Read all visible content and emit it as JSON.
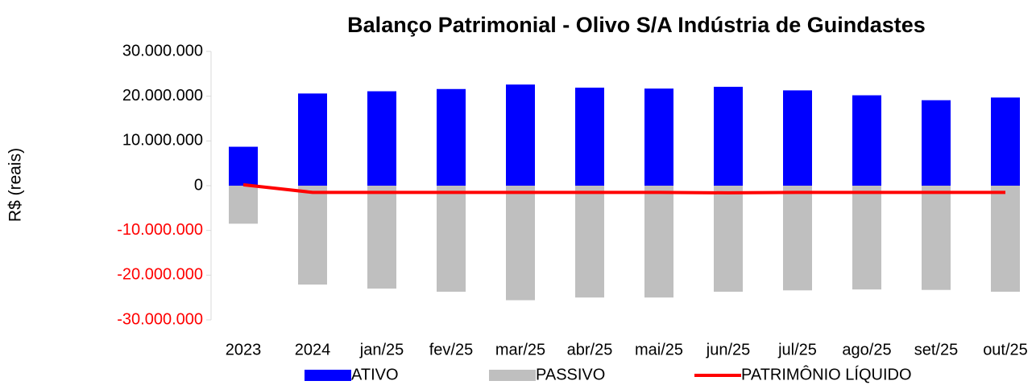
{
  "chart_data": {
    "type": "bar",
    "title": "Balanço Patrimonial - Olivo S/A Indústria de Guindastes",
    "y_label": "R$ (reais)",
    "categories": [
      "2023",
      "2024",
      "jan/25",
      "fev/25",
      "mar/25",
      "abr/25",
      "mai/25",
      "jun/25",
      "jul/25",
      "ago/25",
      "set/25",
      "out/25"
    ],
    "series": [
      {
        "name": "ATIVO",
        "color": "#0000ff",
        "kind": "bar",
        "values": [
          8700000,
          20600000,
          21100000,
          21600000,
          22600000,
          21900000,
          21700000,
          22100000,
          21300000,
          20200000,
          19100000,
          19700000
        ]
      },
      {
        "name": "PASSIVO",
        "color": "#bfbfbf",
        "kind": "bar",
        "values": [
          -8500000,
          -22100000,
          -23000000,
          -23700000,
          -25600000,
          -25000000,
          -25000000,
          -23700000,
          -23400000,
          -23200000,
          -23300000,
          -23700000
        ]
      },
      {
        "name": "PATRIMÔNIO LÍQUIDO",
        "color": "#ff0000",
        "kind": "line",
        "values": [
          200000,
          -1500000,
          -1500000,
          -1500000,
          -1500000,
          -1500000,
          -1500000,
          -1600000,
          -1500000,
          -1500000,
          -1500000,
          -1500000
        ]
      }
    ],
    "ylim": [
      -30000000,
      30000000
    ],
    "yticks": [
      {
        "value": -30000000,
        "label": "-30.000.000"
      },
      {
        "value": -20000000,
        "label": "-20.000.000"
      },
      {
        "value": -10000000,
        "label": "-10.000.000"
      },
      0,
      {
        "value": 10000000,
        "label": "10.000.000"
      },
      {
        "value": 20000000,
        "label": "20.000.000"
      },
      {
        "value": 30000000,
        "label": "30.000.000"
      }
    ],
    "negative_tick_color": "#ff0000",
    "grid": false
  }
}
